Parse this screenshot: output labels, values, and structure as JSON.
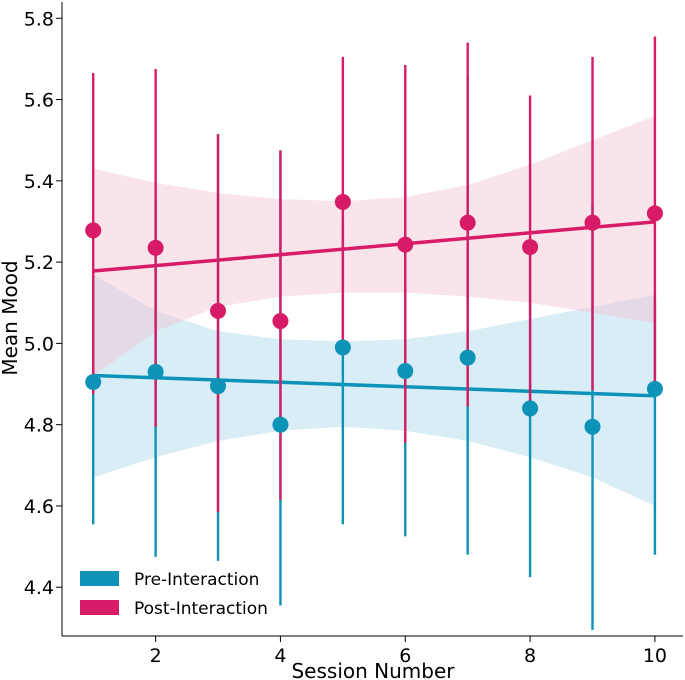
{
  "chart_data": {
    "type": "scatter",
    "title": "",
    "xlabel": "Session Number",
    "ylabel": "Mean Mood",
    "xlim": [
      0.5,
      10.45
    ],
    "ylim": [
      4.28,
      5.84
    ],
    "xticks": [
      2,
      4,
      6,
      8,
      10
    ],
    "yticks": [
      4.4,
      4.6,
      4.8,
      5.0,
      5.2,
      5.4,
      5.6,
      5.8
    ],
    "ytick_labels": [
      "4.4",
      "4.6",
      "4.8",
      "5.0",
      "5.2",
      "5.4",
      "5.6",
      "5.8"
    ],
    "grid": false,
    "legend": {
      "position": "bottom-left"
    },
    "x": [
      1,
      2,
      3,
      4,
      5,
      6,
      7,
      8,
      9,
      10
    ],
    "series": [
      {
        "name": "Pre-Interaction",
        "color": "#0e93b8",
        "band_color": "#a9d6e8",
        "means": [
          4.905,
          4.93,
          4.895,
          4.8,
          4.99,
          4.932,
          4.965,
          4.84,
          4.795,
          4.888
        ],
        "err_low": [
          4.555,
          4.475,
          4.465,
          4.355,
          4.555,
          4.525,
          4.48,
          4.425,
          4.295,
          4.48
        ],
        "err_high": [
          5.165,
          5.35,
          5.515,
          5.475,
          5.305,
          5.385,
          5.655,
          5.245,
          5.345,
          5.105
        ],
        "trend": [
          4.921,
          4.871
        ],
        "band_lower": [
          4.67,
          4.72,
          4.76,
          4.785,
          4.795,
          4.785,
          4.76,
          4.72,
          4.67,
          4.6
        ],
        "band_upper": [
          5.17,
          5.08,
          5.03,
          5.01,
          5.005,
          5.01,
          5.03,
          5.06,
          5.09,
          5.12
        ]
      },
      {
        "name": "Post-Interaction",
        "color": "#d81b66",
        "band_color": "#f3c4d4",
        "means": [
          5.278,
          5.235,
          5.08,
          5.055,
          5.348,
          5.243,
          5.297,
          5.237,
          5.297,
          5.32
        ],
        "err_low": [
          4.875,
          4.795,
          4.585,
          4.615,
          4.985,
          4.755,
          4.845,
          4.855,
          4.885,
          4.885
        ],
        "err_high": [
          5.665,
          5.675,
          5.515,
          5.475,
          5.705,
          5.685,
          5.74,
          5.61,
          5.705,
          5.755
        ],
        "trend": [
          5.178,
          5.299
        ],
        "band_lower": [
          4.92,
          5.03,
          5.09,
          5.115,
          5.125,
          5.125,
          5.115,
          5.1,
          5.075,
          5.05
        ],
        "band_upper": [
          5.43,
          5.395,
          5.37,
          5.355,
          5.35,
          5.36,
          5.39,
          5.44,
          5.5,
          5.56
        ]
      }
    ]
  }
}
